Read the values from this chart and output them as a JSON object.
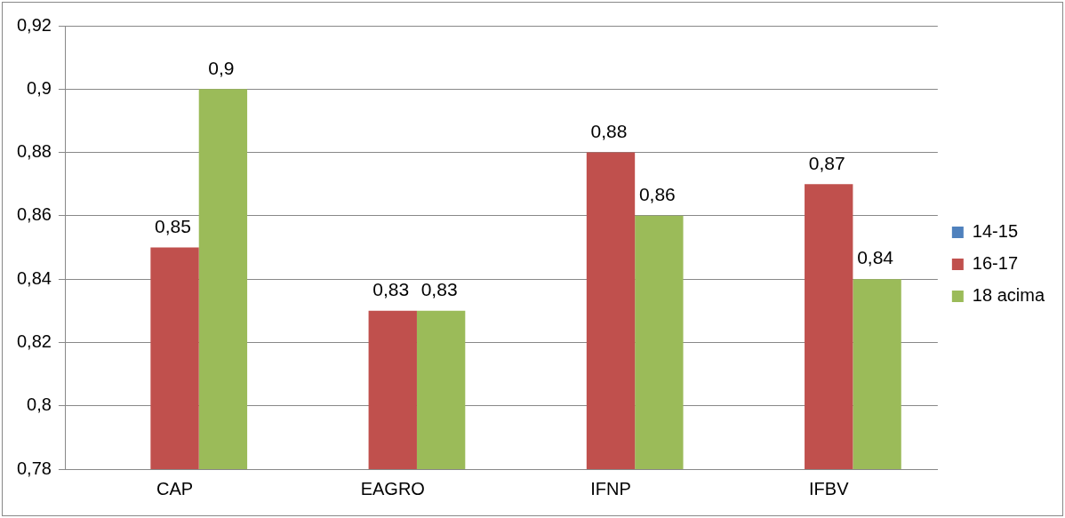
{
  "chart_data": {
    "type": "bar",
    "categories": [
      "CAP",
      "EAGRO",
      "IFNP",
      "IFBV"
    ],
    "series": [
      {
        "name": "14-15",
        "color": "#4f81bd",
        "values": [
          null,
          null,
          null,
          null
        ]
      },
      {
        "name": "16-17",
        "color": "#c0504d",
        "values": [
          0.85,
          0.83,
          0.88,
          0.87
        ],
        "value_labels": [
          "0,85",
          "0,83",
          "0,88",
          "0,87"
        ]
      },
      {
        "name": "18 acima",
        "color": "#9bbb59",
        "values": [
          0.9,
          0.83,
          0.86,
          0.84
        ],
        "value_labels": [
          "0,9",
          "0,83",
          "0,86",
          "0,84"
        ]
      }
    ],
    "ylim": [
      0.78,
      0.92
    ],
    "yticks": [
      {
        "value": 0.78,
        "label": "0,78"
      },
      {
        "value": 0.8,
        "label": "0,8"
      },
      {
        "value": 0.82,
        "label": "0,82"
      },
      {
        "value": 0.84,
        "label": "0,84"
      },
      {
        "value": 0.86,
        "label": "0,86"
      },
      {
        "value": 0.88,
        "label": "0,88"
      },
      {
        "value": 0.9,
        "label": "0,9"
      },
      {
        "value": 0.92,
        "label": "0,92"
      }
    ],
    "grid": "y",
    "legend": "right"
  }
}
